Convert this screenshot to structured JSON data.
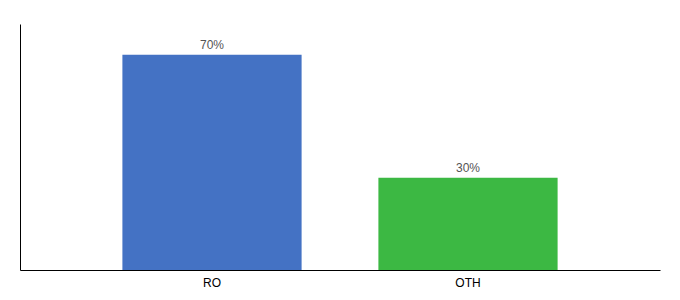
{
  "chart_data": {
    "type": "bar",
    "categories": [
      "RO",
      "OTH"
    ],
    "values": [
      70,
      30
    ],
    "value_labels": [
      "70%",
      "30%"
    ],
    "colors": [
      "#4472c4",
      "#3cb843"
    ],
    "ylim": [
      0,
      80
    ],
    "data_labels": true,
    "tick_labels": "x",
    "grid": false
  }
}
